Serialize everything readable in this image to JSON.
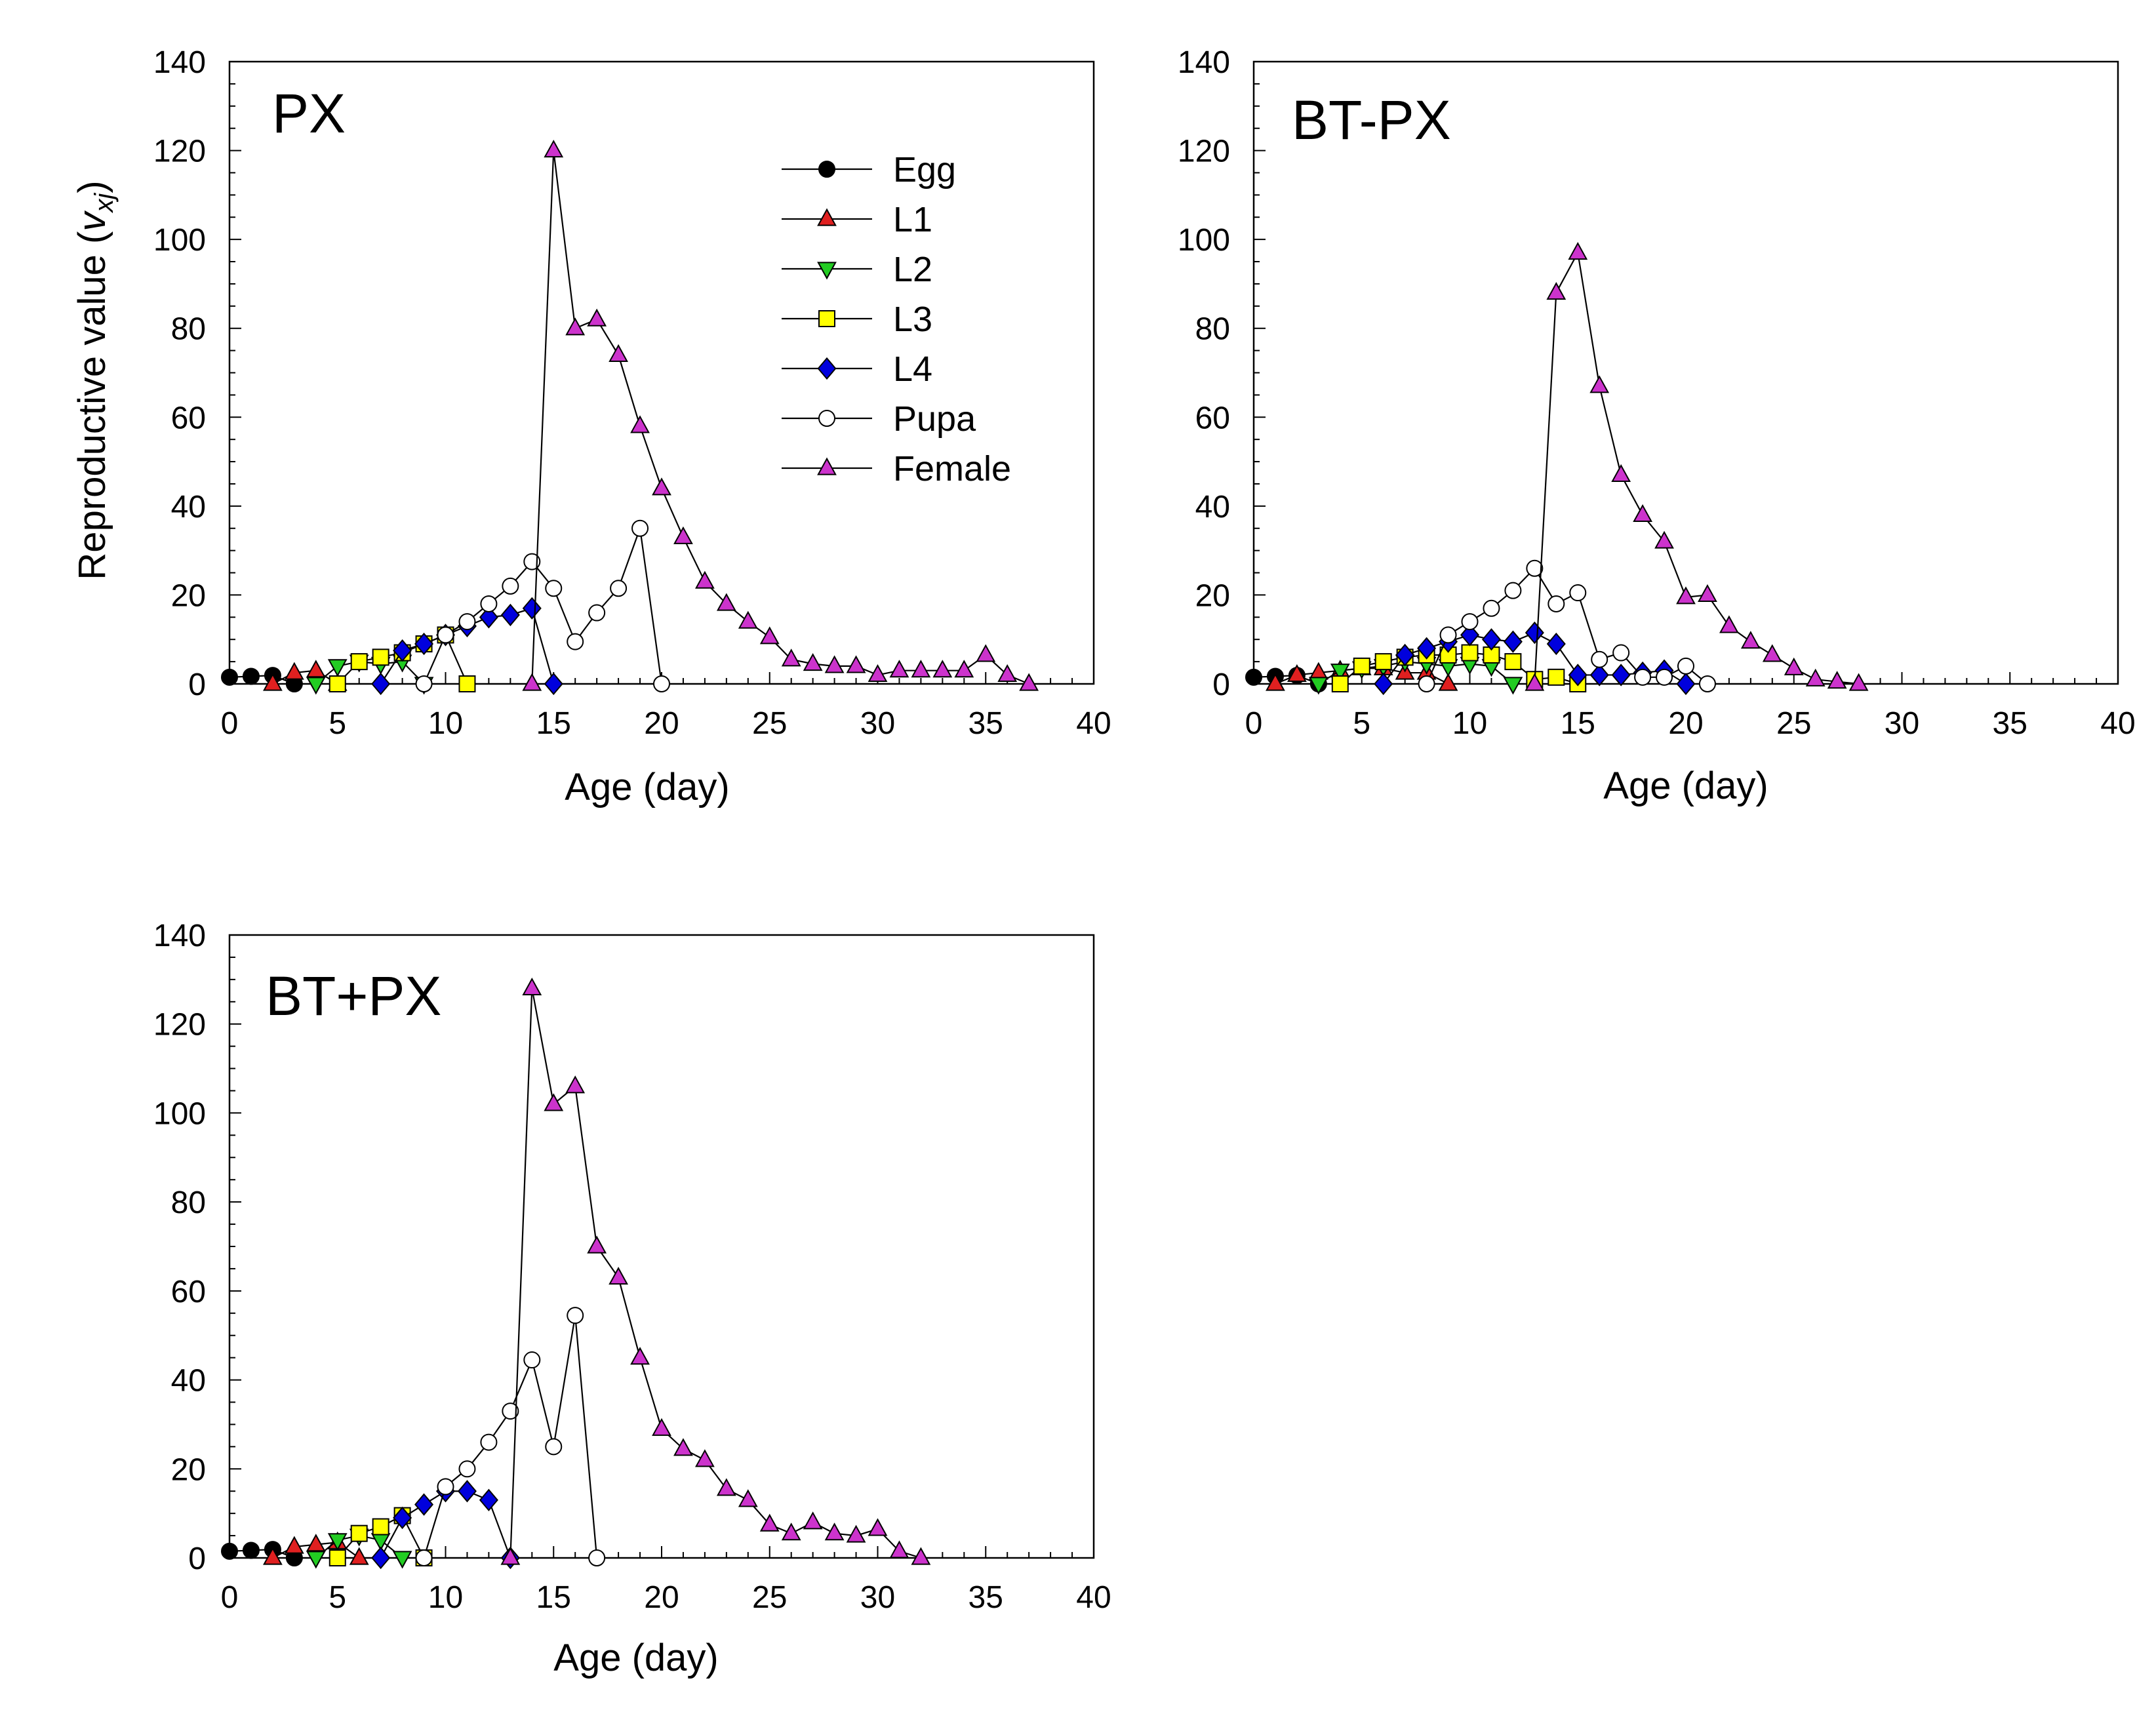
{
  "figure": {
    "ylabel_main": "Reproductive value (",
    "ylabel_sym": "v",
    "ylabel_sub": "xj",
    "ylabel_close": ")"
  },
  "legend": [
    "Egg",
    "L1",
    "L2",
    "L3",
    "L4",
    "Pupa",
    "Female"
  ],
  "styles": {
    "Egg": {
      "marker": "circle",
      "fill": "#000000"
    },
    "L1": {
      "marker": "triangle-up",
      "fill": "#e02020"
    },
    "L2": {
      "marker": "triangle-down",
      "fill": "#22cc22"
    },
    "L3": {
      "marker": "square",
      "fill": "#ffff00"
    },
    "L4": {
      "marker": "diamond",
      "fill": "#0000dd"
    },
    "Pupa": {
      "marker": "circle",
      "fill": "#ffffff"
    },
    "Female": {
      "marker": "triangle-up",
      "fill": "#cc33cc"
    }
  },
  "chart_data": [
    {
      "type": "line",
      "title": "PX",
      "xlabel": "Age (day)",
      "ylabel": "Reproductive value (vxj)",
      "xlim": [
        0,
        40
      ],
      "ylim": [
        0,
        140
      ],
      "xticks": [
        0,
        5,
        10,
        15,
        20,
        25,
        30,
        35,
        40
      ],
      "yticks": [
        0,
        20,
        40,
        60,
        80,
        100,
        120,
        140
      ],
      "legend_position": "top-right",
      "series": [
        {
          "name": "Egg",
          "points": [
            [
              0,
              1.5
            ],
            [
              1,
              1.7
            ],
            [
              2,
              1.9
            ],
            [
              3,
              0
            ]
          ]
        },
        {
          "name": "L1",
          "points": [
            [
              2,
              0
            ],
            [
              3,
              2.5
            ],
            [
              4,
              3
            ],
            [
              5,
              0
            ]
          ]
        },
        {
          "name": "L2",
          "points": [
            [
              4,
              0
            ],
            [
              5,
              4
            ],
            [
              6,
              5
            ],
            [
              7,
              4.5
            ],
            [
              8,
              5
            ],
            [
              9,
              0
            ]
          ]
        },
        {
          "name": "L3",
          "points": [
            [
              5,
              0
            ],
            [
              6,
              5
            ],
            [
              7,
              6
            ],
            [
              8,
              7
            ],
            [
              9,
              9
            ],
            [
              10,
              11
            ],
            [
              11,
              0
            ]
          ]
        },
        {
          "name": "L4",
          "points": [
            [
              7,
              0
            ],
            [
              8,
              7.5
            ],
            [
              9,
              9
            ],
            [
              10,
              11
            ],
            [
              11,
              13
            ],
            [
              12,
              15
            ],
            [
              13,
              15.5
            ],
            [
              14,
              17
            ],
            [
              15,
              0
            ]
          ]
        },
        {
          "name": "Pupa",
          "points": [
            [
              9,
              0
            ],
            [
              10,
              11
            ],
            [
              11,
              14
            ],
            [
              12,
              18
            ],
            [
              13,
              22
            ],
            [
              14,
              27.5
            ],
            [
              15,
              21.5
            ],
            [
              16,
              9.5
            ],
            [
              17,
              16
            ],
            [
              18,
              21.5
            ],
            [
              19,
              35
            ],
            [
              20,
              0
            ]
          ]
        },
        {
          "name": "Female",
          "points": [
            [
              14,
              0
            ],
            [
              15,
              120
            ],
            [
              16,
              80
            ],
            [
              17,
              82
            ],
            [
              18,
              74
            ],
            [
              19,
              58
            ],
            [
              20,
              44
            ],
            [
              21,
              33
            ],
            [
              22,
              23
            ],
            [
              23,
              18
            ],
            [
              24,
              14
            ],
            [
              25,
              10.5
            ],
            [
              26,
              5.5
            ],
            [
              27,
              4.5
            ],
            [
              28,
              4
            ],
            [
              29,
              4
            ],
            [
              30,
              2
            ],
            [
              31,
              3
            ],
            [
              32,
              3
            ],
            [
              33,
              3
            ],
            [
              34,
              3
            ],
            [
              35,
              6.5
            ],
            [
              36,
              2
            ],
            [
              37,
              0
            ]
          ]
        }
      ]
    },
    {
      "type": "line",
      "title": "BT-PX",
      "xlabel": "Age (day)",
      "xlim": [
        0,
        40
      ],
      "ylim": [
        0,
        140
      ],
      "xticks": [
        0,
        5,
        10,
        15,
        20,
        25,
        30,
        35,
        40
      ],
      "yticks": [
        0,
        20,
        40,
        60,
        80,
        100,
        120,
        140
      ],
      "series": [
        {
          "name": "Egg",
          "points": [
            [
              0,
              1.5
            ],
            [
              1,
              1.7
            ],
            [
              2,
              1.9
            ],
            [
              3,
              0
            ]
          ]
        },
        {
          "name": "L1",
          "points": [
            [
              1,
              0
            ],
            [
              2,
              2
            ],
            [
              3,
              2.5
            ],
            [
              4,
              3
            ],
            [
              5,
              3.5
            ],
            [
              6,
              3.5
            ],
            [
              7,
              2.5
            ],
            [
              8,
              2.5
            ],
            [
              9,
              0
            ]
          ]
        },
        {
          "name": "L2",
          "points": [
            [
              3,
              0
            ],
            [
              4,
              3
            ],
            [
              5,
              3.5
            ],
            [
              6,
              4
            ],
            [
              7,
              5
            ],
            [
              8,
              4.5
            ],
            [
              9,
              4
            ],
            [
              10,
              4.5
            ],
            [
              11,
              4
            ],
            [
              12,
              0
            ]
          ]
        },
        {
          "name": "L3",
          "points": [
            [
              4,
              0
            ],
            [
              5,
              4
            ],
            [
              6,
              5
            ],
            [
              7,
              6
            ],
            [
              8,
              6.5
            ],
            [
              9,
              6.5
            ],
            [
              10,
              7
            ],
            [
              11,
              6.5
            ],
            [
              12,
              5
            ],
            [
              13,
              1
            ],
            [
              14,
              1.5
            ],
            [
              15,
              0
            ]
          ]
        },
        {
          "name": "L4",
          "points": [
            [
              6,
              0
            ],
            [
              7,
              6.5
            ],
            [
              8,
              8
            ],
            [
              9,
              9.5
            ],
            [
              10,
              11
            ],
            [
              11,
              10
            ],
            [
              12,
              9.5
            ],
            [
              13,
              11.5
            ],
            [
              14,
              9
            ],
            [
              15,
              2
            ],
            [
              16,
              2
            ],
            [
              17,
              2
            ],
            [
              18,
              2.5
            ],
            [
              19,
              3
            ],
            [
              20,
              0
            ]
          ]
        },
        {
          "name": "Pupa",
          "points": [
            [
              8,
              0
            ],
            [
              9,
              11
            ],
            [
              10,
              14
            ],
            [
              11,
              17
            ],
            [
              12,
              21
            ],
            [
              13,
              26
            ],
            [
              14,
              18
            ],
            [
              15,
              20.5
            ],
            [
              16,
              5.5
            ],
            [
              17,
              7
            ],
            [
              18,
              1.5
            ],
            [
              19,
              1.5
            ],
            [
              20,
              4
            ],
            [
              21,
              0
            ]
          ]
        },
        {
          "name": "Female",
          "points": [
            [
              13,
              0
            ],
            [
              14,
              88
            ],
            [
              15,
              97
            ],
            [
              16,
              67
            ],
            [
              17,
              47
            ],
            [
              18,
              38
            ],
            [
              19,
              32
            ],
            [
              20,
              19.5
            ],
            [
              21,
              20
            ],
            [
              22,
              13
            ],
            [
              23,
              9.5
            ],
            [
              24,
              6.5
            ],
            [
              25,
              3.5
            ],
            [
              26,
              1
            ],
            [
              27,
              0.5
            ],
            [
              28,
              0
            ]
          ]
        }
      ]
    },
    {
      "type": "line",
      "title": "BT+PX",
      "xlabel": "Age (day)",
      "xlim": [
        0,
        40
      ],
      "ylim": [
        0,
        140
      ],
      "xticks": [
        0,
        5,
        10,
        15,
        20,
        25,
        30,
        35,
        40
      ],
      "yticks": [
        0,
        20,
        40,
        60,
        80,
        100,
        120,
        140
      ],
      "series": [
        {
          "name": "Egg",
          "points": [
            [
              0,
              1.5
            ],
            [
              1,
              1.7
            ],
            [
              2,
              1.9
            ],
            [
              3,
              0
            ]
          ]
        },
        {
          "name": "L1",
          "points": [
            [
              2,
              0
            ],
            [
              3,
              2.5
            ],
            [
              4,
              3
            ],
            [
              5,
              3.5
            ],
            [
              6,
              0
            ]
          ]
        },
        {
          "name": "L2",
          "points": [
            [
              4,
              0
            ],
            [
              5,
              4
            ],
            [
              6,
              5
            ],
            [
              7,
              4
            ],
            [
              8,
              0
            ]
          ]
        },
        {
          "name": "L3",
          "points": [
            [
              5,
              0
            ],
            [
              6,
              5.5
            ],
            [
              7,
              7
            ],
            [
              8,
              9.5
            ],
            [
              9,
              0
            ]
          ]
        },
        {
          "name": "L4",
          "points": [
            [
              7,
              0
            ],
            [
              8,
              9
            ],
            [
              9,
              12
            ],
            [
              10,
              15
            ],
            [
              11,
              15
            ],
            [
              12,
              13
            ],
            [
              13,
              0
            ]
          ]
        },
        {
          "name": "Pupa",
          "points": [
            [
              9,
              0
            ],
            [
              10,
              16
            ],
            [
              11,
              20
            ],
            [
              12,
              26
            ],
            [
              13,
              33
            ],
            [
              14,
              44.5
            ],
            [
              15,
              25
            ],
            [
              16,
              54.5
            ],
            [
              17,
              0
            ]
          ]
        },
        {
          "name": "Female",
          "points": [
            [
              13,
              0
            ],
            [
              14,
              128
            ],
            [
              15,
              102
            ],
            [
              16,
              106
            ],
            [
              17,
              70
            ],
            [
              18,
              63
            ],
            [
              19,
              45
            ],
            [
              20,
              29
            ],
            [
              21,
              24.5
            ],
            [
              22,
              22
            ],
            [
              23,
              15.5
            ],
            [
              24,
              13
            ],
            [
              25,
              7.5
            ],
            [
              26,
              5.5
            ],
            [
              27,
              8
            ],
            [
              28,
              5.5
            ],
            [
              29,
              5
            ],
            [
              30,
              6.5
            ],
            [
              31,
              1.5
            ],
            [
              32,
              0
            ]
          ]
        }
      ]
    }
  ]
}
